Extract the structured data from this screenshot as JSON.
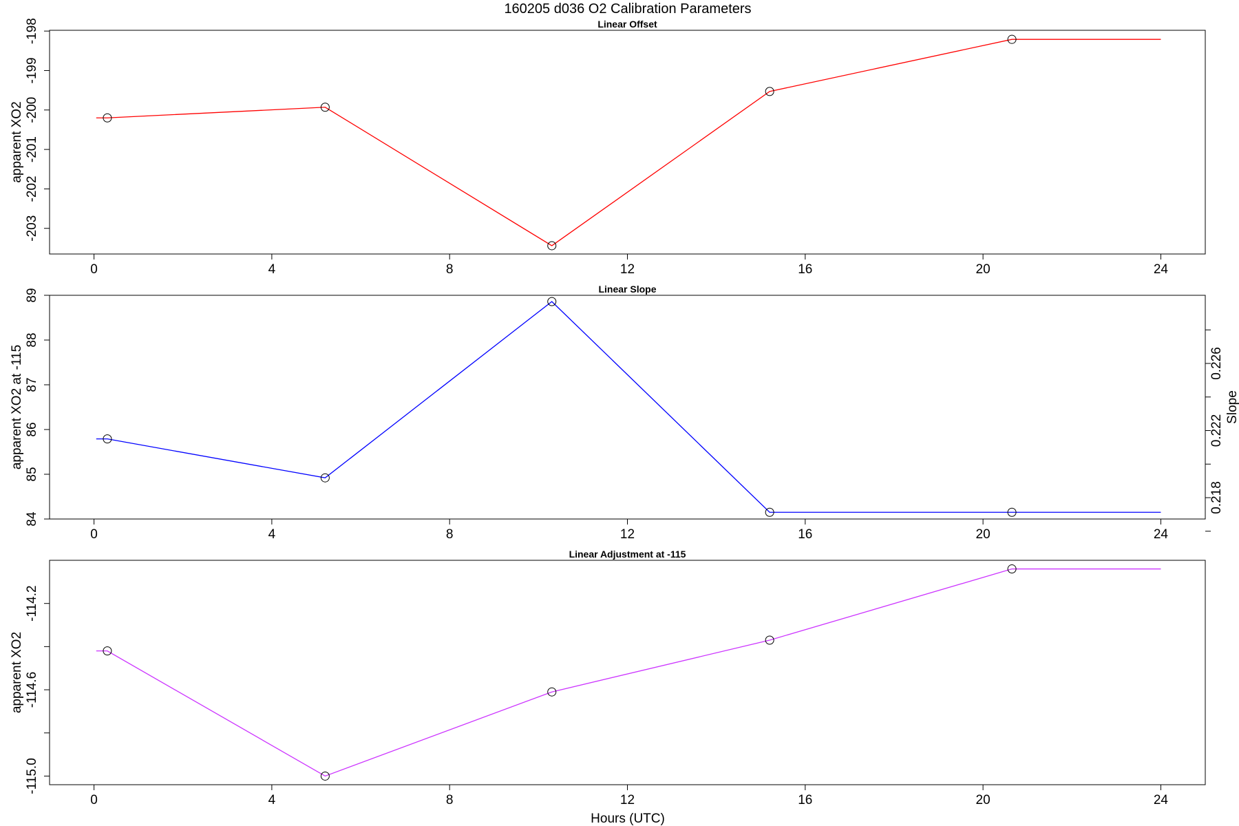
{
  "figure": {
    "title": "160205   d036   O2 Calibration Parameters",
    "xlabel": "Hours (UTC)"
  },
  "chart_data": [
    {
      "type": "line",
      "title": "Linear Offset",
      "xlabel": "",
      "ylabel": "apparent XO2",
      "xlim": [
        -1.0,
        25.0
      ],
      "ylim": [
        -203.65,
        -197.98
      ],
      "xticks": [
        0,
        4,
        8,
        12,
        16,
        20,
        24
      ],
      "yticks": [
        -203,
        -202,
        -201,
        -200,
        -199,
        -198
      ],
      "grid": false,
      "series": [
        {
          "color": "#ff0000",
          "marker": "open-circle",
          "x": [
            0.3,
            5.2,
            10.3,
            15.2,
            20.65
          ],
          "y": [
            -200.2,
            -199.93,
            -203.44,
            -199.53,
            -198.21
          ],
          "line_extends_to": [
            0.05,
            24.0
          ]
        }
      ]
    },
    {
      "type": "line",
      "title": "Linear Slope",
      "xlabel": "",
      "ylabel": "apparent XO2 at -115",
      "ylabel_right": "Slope",
      "xlim": [
        -1.0,
        25.0
      ],
      "ylim": [
        84.0,
        89.0
      ],
      "xticks": [
        0,
        4,
        8,
        12,
        16,
        20,
        24
      ],
      "yticks": [
        84,
        85,
        86,
        87,
        88,
        89
      ],
      "yticks_right": [
        0.218,
        0.222,
        0.226
      ],
      "yticks_right_minor": [
        0.216,
        0.22,
        0.224,
        0.228
      ],
      "grid": false,
      "series": [
        {
          "color": "#0000ff",
          "marker": "open-circle",
          "x": [
            0.3,
            5.2,
            10.3,
            15.2,
            20.65
          ],
          "y": [
            85.79,
            84.92,
            88.86,
            84.15,
            84.15
          ],
          "line_extends_to": [
            0.05,
            24.0
          ]
        }
      ]
    },
    {
      "type": "line",
      "title": "Linear Adjustment at -115",
      "xlabel": "Hours (UTC)",
      "ylabel": "apparent XO2",
      "xlim": [
        -1.0,
        25.0
      ],
      "ylim": [
        -115.04,
        -114.0
      ],
      "xticks": [
        0,
        4,
        8,
        12,
        16,
        20,
        24
      ],
      "yticks": [
        -115.0,
        -114.6,
        -114.2
      ],
      "yticks_minor": [
        -114.8,
        -114.4
      ],
      "grid": false,
      "series": [
        {
          "color": "#cc33ff",
          "marker": "open-circle",
          "x": [
            0.3,
            5.2,
            10.3,
            15.2,
            20.65
          ],
          "y": [
            -114.42,
            -115.0,
            -114.61,
            -114.37,
            -114.04
          ],
          "line_extends_to": [
            0.05,
            24.0
          ]
        }
      ]
    }
  ]
}
